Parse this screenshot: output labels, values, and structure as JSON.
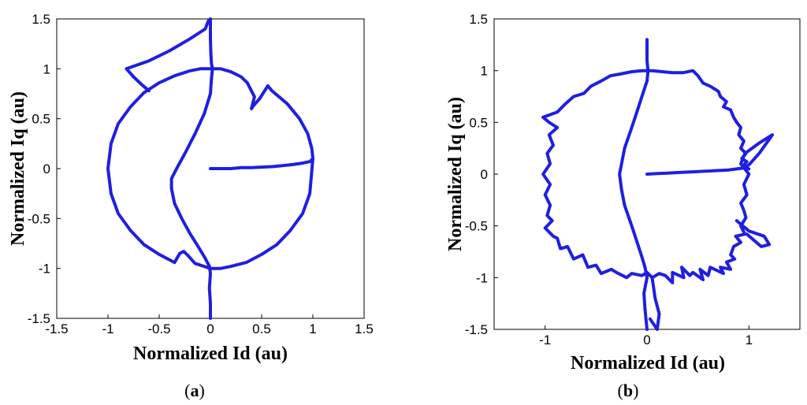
{
  "chart_data": [
    {
      "type": "line",
      "caption_prefix": "(",
      "caption_letter": "a",
      "caption_suffix": ")",
      "xlabel": "Normalized Id (au)",
      "ylabel": "Normalized Iq (au)",
      "xlim": [
        -1.5,
        1.5
      ],
      "ylim": [
        -1.5,
        1.5
      ],
      "xticks": [
        -1.5,
        -1,
        -0.5,
        0,
        0.5,
        1,
        1.5
      ],
      "xtick_labels": [
        "-1.5",
        "-1",
        "-0.5",
        "0",
        "0.5",
        "1",
        "1.5"
      ],
      "yticks": [
        -1.5,
        -1,
        -0.5,
        0,
        0.5,
        1,
        1.5
      ],
      "ytick_labels": [
        "-1.5",
        "-1",
        "-0.5",
        "0",
        "0.5",
        "1",
        "1.5"
      ],
      "grid": false,
      "line_color": "#1f1fe0",
      "series": [
        {
          "x": [
            0,
            0.1,
            0.2,
            0.3,
            0.4,
            0.5,
            0.6,
            0.7,
            0.8,
            0.9,
            0.97,
            1.0,
            0.99,
            0.95,
            0.87,
            0.75,
            0.6,
            0.56,
            0.48,
            0.42,
            0.4,
            0.43,
            0.36,
            0.3,
            0.2,
            0.1,
            0,
            -0.1,
            -0.2,
            -0.35,
            -0.5,
            -0.65,
            -0.78,
            -0.9,
            -0.97,
            -1.0,
            -0.97,
            -0.9,
            -0.78,
            -0.65,
            -0.5,
            -0.35,
            -0.3,
            -0.26,
            -0.22,
            -0.15,
            0,
            0.1,
            0.2,
            0.35,
            0.5,
            0.65,
            0.78,
            0.9,
            0.97,
            1.0
          ],
          "y": [
            0,
            0,
            0,
            0.01,
            0.01,
            0.015,
            0.02,
            0.03,
            0.04,
            0.055,
            0.07,
            0.1,
            0.2,
            0.35,
            0.5,
            0.65,
            0.78,
            0.83,
            0.7,
            0.63,
            0.6,
            0.72,
            0.86,
            0.92,
            0.97,
            1.0,
            1.0,
            1.0,
            0.98,
            0.93,
            0.86,
            0.76,
            0.62,
            0.45,
            0.25,
            0,
            -0.25,
            -0.45,
            -0.62,
            -0.76,
            -0.86,
            -0.94,
            -0.85,
            -0.83,
            -0.87,
            -0.95,
            -1.0,
            -1.0,
            -0.98,
            -0.94,
            -0.86,
            -0.76,
            -0.62,
            -0.45,
            -0.25,
            0.1
          ]
        },
        {
          "x": [
            0,
            0,
            0,
            0.005,
            0.01,
            0.02,
            0.01,
            0.0,
            -0.06,
            -0.15,
            -0.25,
            -0.33,
            -0.38,
            -0.38,
            -0.35,
            -0.28,
            -0.2,
            -0.12,
            -0.05,
            -0.01,
            0.0,
            -0.01,
            0.0,
            0.0
          ],
          "y": [
            1.5,
            1.45,
            1.3,
            1.15,
            1.05,
            1.0,
            0.9,
            0.75,
            0.55,
            0.35,
            0.15,
            0.0,
            -0.1,
            -0.2,
            -0.35,
            -0.5,
            -0.65,
            -0.78,
            -0.9,
            -0.98,
            -1.05,
            -1.2,
            -1.35,
            -1.5
          ]
        },
        {
          "x": [
            -0.02,
            -0.05,
            -0.2,
            -0.4,
            -0.6,
            -0.82,
            -0.75,
            -0.68,
            -0.6
          ],
          "y": [
            1.48,
            1.4,
            1.3,
            1.18,
            1.08,
            1.0,
            0.92,
            0.85,
            0.78
          ]
        }
      ]
    },
    {
      "type": "line",
      "caption_prefix": "(",
      "caption_letter": "b",
      "caption_suffix": ")",
      "xlabel": "Normalized Id (au)",
      "ylabel": "Normalized Iq (au)",
      "xlim": [
        -1.5,
        1.5
      ],
      "ylim": [
        -1.5,
        1.5
      ],
      "xticks": [
        -1,
        0,
        1
      ],
      "xtick_labels": [
        "-1",
        "0",
        "1"
      ],
      "yticks": [
        -1.5,
        -1,
        -0.5,
        0,
        0.5,
        1,
        1.5
      ],
      "ytick_labels": [
        "-1.5",
        "-1",
        "-0.5",
        "0",
        "0.5",
        "1",
        "1.5"
      ],
      "grid": false,
      "line_color": "#1f1fe0",
      "series": [
        {
          "x": [
            0,
            0.1,
            0.2,
            0.3,
            0.4,
            0.5,
            0.6,
            0.7,
            0.8,
            0.88,
            0.95,
            1.0,
            1.1,
            1.23,
            1.1,
            0.96,
            0.92,
            1.0,
            0.95,
            0.98,
            0.92,
            0.95,
            0.97,
            0.92,
            0.96,
            0.87,
            0.92,
            0.85,
            0.82,
            0.86,
            0.78,
            0.82,
            0.72,
            0.75,
            0.62,
            0.6,
            0.52,
            0.55,
            0.45,
            0.42,
            0.34,
            0.36,
            0.25,
            0.25,
            0.18,
            0.12,
            0.05,
            0.0,
            -0.05,
            -0.15,
            -0.2,
            -0.3,
            -0.35,
            -0.45,
            -0.5,
            -0.58,
            -0.63,
            -0.72,
            -0.78,
            -0.85,
            -0.88,
            -0.92,
            -1.0,
            -0.93,
            -0.98,
            -0.95,
            -1.0,
            -0.95,
            -1.02,
            -0.95,
            -0.98,
            -0.92,
            -0.96,
            -0.88,
            -0.96,
            -1.02,
            -0.88,
            -0.8,
            -0.72,
            -0.62,
            -0.55,
            -0.45,
            -0.36,
            -0.25,
            -0.15,
            -0.05,
            0.05,
            0.15,
            0.25,
            0.35,
            0.45,
            0.5,
            0.55,
            0.62,
            0.7,
            0.72,
            0.78,
            0.75,
            0.82,
            0.85,
            0.88,
            0.92,
            0.9,
            0.95,
            0.92,
            0.97,
            0.93,
            0.98,
            0.94,
            1.0
          ],
          "y": [
            0,
            0.005,
            0.01,
            0.015,
            0.02,
            0.025,
            0.03,
            0.035,
            0.04,
            0.05,
            0.06,
            0.09,
            0.2,
            0.38,
            0.3,
            0.2,
            0.1,
            0.0,
            -0.1,
            -0.2,
            -0.28,
            -0.35,
            -0.42,
            -0.5,
            -0.58,
            -0.6,
            -0.66,
            -0.7,
            -0.78,
            -0.82,
            -0.85,
            -0.92,
            -0.9,
            -0.96,
            -0.9,
            -0.98,
            -0.92,
            -1.02,
            -0.95,
            -0.98,
            -0.9,
            -1.0,
            -0.95,
            -1.05,
            -0.98,
            -0.96,
            -1.0,
            -0.95,
            -0.98,
            -0.96,
            -1.0,
            -0.95,
            -0.92,
            -0.96,
            -0.88,
            -0.9,
            -0.78,
            -0.82,
            -0.7,
            -0.72,
            -0.62,
            -0.6,
            -0.52,
            -0.45,
            -0.4,
            -0.3,
            -0.2,
            -0.1,
            0.0,
            0.1,
            0.2,
            0.28,
            0.38,
            0.45,
            0.5,
            0.55,
            0.6,
            0.68,
            0.75,
            0.78,
            0.85,
            0.9,
            0.95,
            0.97,
            0.99,
            1.0,
            1.0,
            0.99,
            0.98,
            0.98,
            1.0,
            0.95,
            0.88,
            0.85,
            0.8,
            0.75,
            0.7,
            0.65,
            0.62,
            0.55,
            0.5,
            0.45,
            0.38,
            0.32,
            0.25,
            0.2,
            0.15,
            0.12,
            0.08,
            0.05
          ]
        },
        {
          "x": [
            0,
            0,
            0,
            0.005,
            0.01,
            0.0,
            -0.05,
            -0.1,
            -0.15,
            -0.22,
            -0.25,
            -0.27,
            -0.25,
            -0.22,
            -0.15,
            -0.1,
            -0.05,
            -0.02,
            0.0,
            -0.03,
            -0.02,
            0.0
          ],
          "y": [
            1.3,
            1.2,
            1.1,
            1.05,
            1.0,
            0.9,
            0.75,
            0.6,
            0.45,
            0.25,
            0.1,
            0.0,
            -0.15,
            -0.3,
            -0.5,
            -0.65,
            -0.8,
            -0.9,
            -1.0,
            -1.15,
            -1.3,
            -1.5
          ]
        },
        {
          "x": [
            0.05,
            0.08,
            0.12,
            0.1,
            0.03
          ],
          "y": [
            -1.0,
            -1.2,
            -1.35,
            -1.5,
            -1.4
          ]
        },
        {
          "x": [
            0.88,
            1.0,
            1.15,
            1.2,
            1.12,
            0.98
          ],
          "y": [
            -0.45,
            -0.55,
            -0.6,
            -0.68,
            -0.7,
            -0.58
          ]
        }
      ]
    }
  ]
}
